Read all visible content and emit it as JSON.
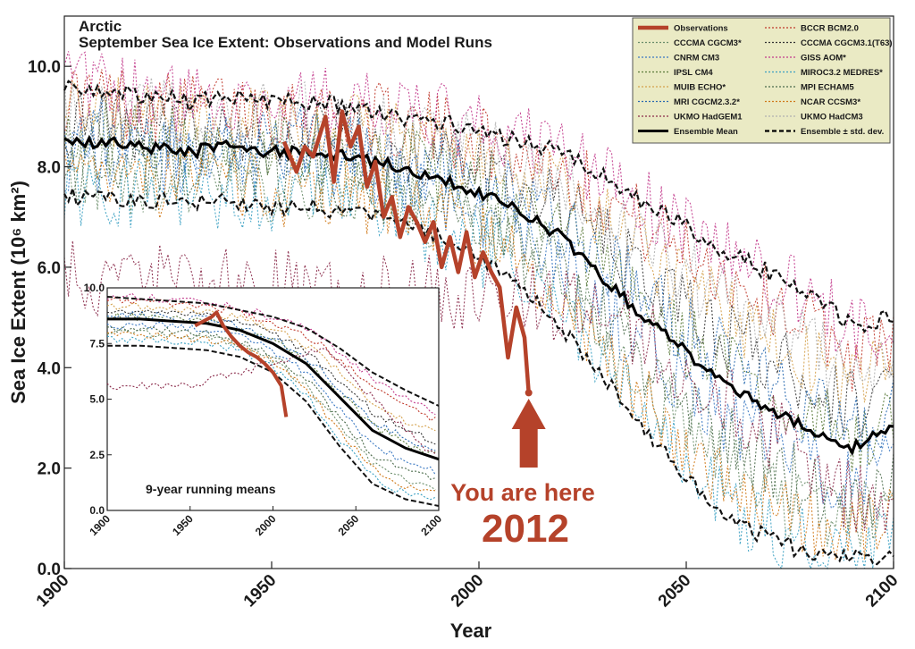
{
  "chart_data": {
    "type": "line",
    "title": "Arctic",
    "subtitle": "September Sea Ice Extent: Observations and Model Runs",
    "xlabel": "Year",
    "ylabel": "Sea Ice Extent (10⁶ km²)",
    "xlim": [
      1900,
      2100
    ],
    "ylim": [
      0,
      11
    ],
    "x_ticks": [
      "1900",
      "1950",
      "2000",
      "2050",
      "2100"
    ],
    "y_ticks": [
      "0.0",
      "2.0",
      "4.0",
      "6.0",
      "8.0",
      "10.0"
    ],
    "legend_position": "top-right",
    "legend": [
      {
        "label": "Observations",
        "style": "obs",
        "color": "#b5422a"
      },
      {
        "label": "BCCR BCM2.0",
        "style": "model",
        "color": "#c0392b"
      },
      {
        "label": "CCCMA CGCM3*",
        "style": "model",
        "color": "#6b8e6b"
      },
      {
        "label": "CCCMA CGCM3.1(T63)",
        "style": "model",
        "color": "#333333"
      },
      {
        "label": "CNRM CM3",
        "style": "model",
        "color": "#3a78c2"
      },
      {
        "label": "GISS AOM*",
        "style": "model",
        "color": "#c23a8c"
      },
      {
        "label": "IPSL CM4",
        "style": "model",
        "color": "#5a7a3a"
      },
      {
        "label": "MIROC3.2 MEDRES*",
        "style": "model",
        "color": "#3aa0c2"
      },
      {
        "label": "MUIB ECHO*",
        "style": "model",
        "color": "#d4a04a"
      },
      {
        "label": "MPI ECHAM5",
        "style": "model",
        "color": "#4a6a4a"
      },
      {
        "label": "MRI CGCM2.3.2*",
        "style": "model",
        "color": "#2a6ab0"
      },
      {
        "label": "NCAR CCSM3*",
        "style": "model",
        "color": "#d07a1a"
      },
      {
        "label": "UKMO HadGEM1",
        "style": "model",
        "color": "#8a2a4a"
      },
      {
        "label": "UKMO HadCM3",
        "style": "model",
        "color": "#b0b0b0"
      },
      {
        "label": "Ensemble Mean",
        "style": "mean",
        "color": "#000000"
      },
      {
        "label": "Ensemble ± std. dev.",
        "style": "std",
        "color": "#000000"
      }
    ],
    "series": [
      {
        "name": "Ensemble Mean",
        "x": [
          1900,
          1910,
          1920,
          1930,
          1940,
          1950,
          1960,
          1970,
          1980,
          1990,
          2000,
          2010,
          2020,
          2030,
          2040,
          2050,
          2060,
          2070,
          2080,
          2090,
          2100
        ],
        "y": [
          8.5,
          8.5,
          8.4,
          8.3,
          8.4,
          8.3,
          8.3,
          8.2,
          8.0,
          7.8,
          7.5,
          7.1,
          6.6,
          5.8,
          5.0,
          4.3,
          3.7,
          3.2,
          2.8,
          2.4,
          2.8
        ]
      },
      {
        "name": "Ensemble + std. dev.",
        "x": [
          1900,
          1910,
          1920,
          1930,
          1940,
          1950,
          1960,
          1970,
          1980,
          1990,
          2000,
          2010,
          2020,
          2030,
          2040,
          2050,
          2060,
          2070,
          2080,
          2090,
          2100
        ],
        "y": [
          9.6,
          9.5,
          9.4,
          9.3,
          9.4,
          9.3,
          9.3,
          9.2,
          9.0,
          8.9,
          8.7,
          8.5,
          8.3,
          7.8,
          7.3,
          6.8,
          6.3,
          5.9,
          5.5,
          4.8,
          5.0
        ]
      },
      {
        "name": "Ensemble - std. dev.",
        "x": [
          1900,
          1910,
          1920,
          1930,
          1940,
          1950,
          1960,
          1970,
          1980,
          1990,
          2000,
          2010,
          2020,
          2030,
          2040,
          2050,
          2060,
          2070,
          2080,
          2090,
          2100
        ],
        "y": [
          7.4,
          7.4,
          7.3,
          7.3,
          7.3,
          7.2,
          7.2,
          7.1,
          6.9,
          6.6,
          6.2,
          5.6,
          4.8,
          3.8,
          2.8,
          1.8,
          1.0,
          0.6,
          0.3,
          0.2,
          0.3
        ]
      },
      {
        "name": "Observations",
        "x": [
          1953,
          1956,
          1958,
          1960,
          1963,
          1965,
          1967,
          1969,
          1971,
          1973,
          1975,
          1977,
          1979,
          1981,
          1983,
          1985,
          1987,
          1989,
          1991,
          1993,
          1995,
          1997,
          1999,
          2001,
          2003,
          2005,
          2007,
          2009,
          2011,
          2012
        ],
        "y": [
          8.5,
          7.9,
          8.4,
          8.2,
          9.0,
          7.7,
          9.1,
          8.4,
          8.8,
          7.6,
          8.1,
          7.0,
          7.4,
          6.6,
          7.2,
          6.9,
          6.5,
          6.9,
          6.0,
          6.6,
          5.9,
          6.7,
          5.8,
          6.3,
          5.9,
          5.6,
          4.2,
          5.2,
          4.6,
          3.5
        ]
      }
    ],
    "annotations": [
      "You are here",
      "2012"
    ]
  },
  "inset": {
    "label": "9-year running means",
    "x_ticks": [
      "1900",
      "1950",
      "2000",
      "2050",
      "2100"
    ],
    "y_ticks": [
      "0.0",
      "2.5",
      "5.0",
      "7.5",
      "10.0"
    ],
    "xlim": [
      1900,
      2100
    ],
    "ylim": [
      0,
      10
    ],
    "series": [
      {
        "name": "Ensemble Mean",
        "x": [
          1900,
          1920,
          1940,
          1960,
          1980,
          2000,
          2020,
          2040,
          2060,
          2080,
          2100
        ],
        "y": [
          8.6,
          8.6,
          8.5,
          8.4,
          8.1,
          7.5,
          6.6,
          5.1,
          3.6,
          2.8,
          2.3
        ]
      },
      {
        "name": "Ensemble + std. dev.",
        "x": [
          1900,
          1920,
          1940,
          1960,
          1980,
          2000,
          2020,
          2040,
          2060,
          2080,
          2100
        ],
        "y": [
          9.6,
          9.5,
          9.4,
          9.3,
          9.0,
          8.7,
          8.2,
          7.3,
          6.2,
          5.4,
          4.7
        ]
      },
      {
        "name": "Ensemble - std. dev.",
        "x": [
          1900,
          1920,
          1940,
          1960,
          1980,
          2000,
          2020,
          2040,
          2060,
          2080,
          2100
        ],
        "y": [
          7.4,
          7.4,
          7.3,
          7.2,
          6.9,
          6.2,
          4.9,
          2.9,
          1.2,
          0.5,
          0.2
        ]
      },
      {
        "name": "Observations",
        "x": [
          1953,
          1958,
          1963,
          1966,
          1970,
          1975,
          1980,
          1985,
          1990,
          1995,
          2000,
          2005,
          2008
        ],
        "y": [
          8.3,
          8.5,
          8.7,
          8.9,
          8.3,
          7.8,
          7.4,
          7.1,
          6.9,
          6.6,
          6.2,
          5.6,
          4.2
        ]
      }
    ]
  }
}
